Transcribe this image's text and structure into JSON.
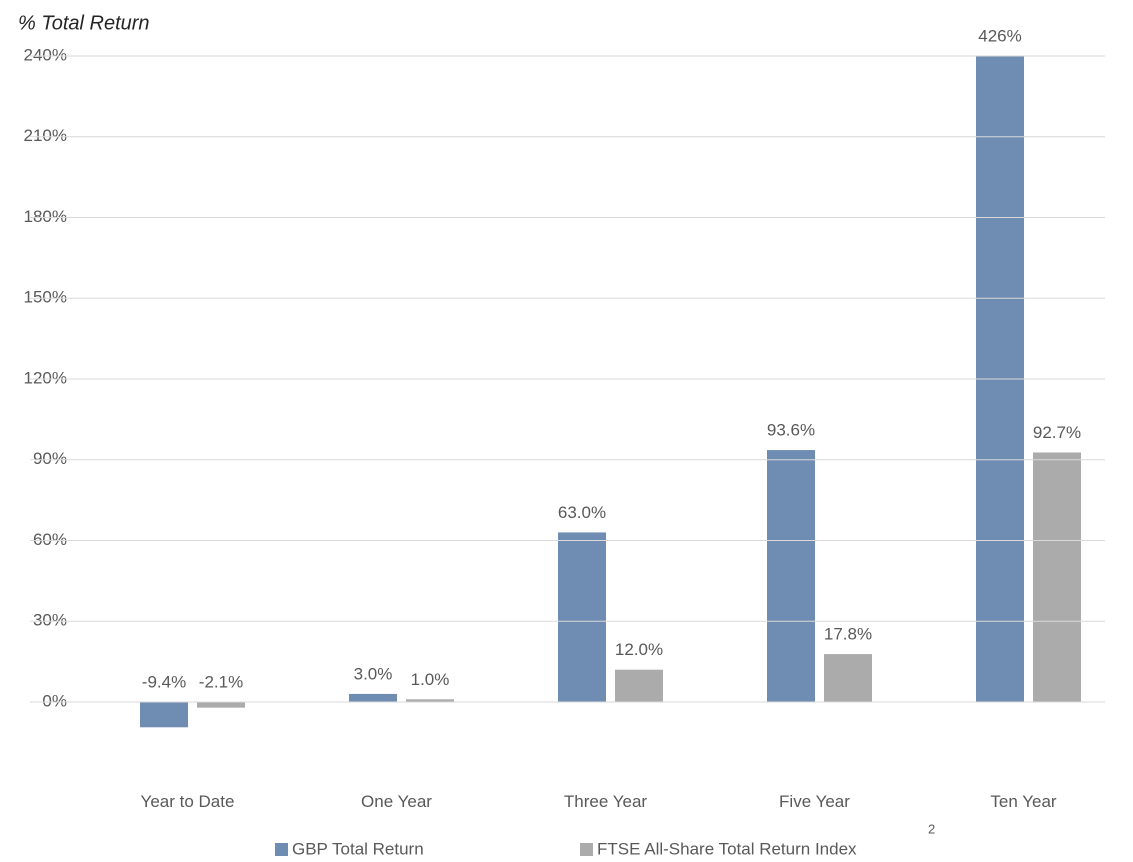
{
  "chart_data": {
    "type": "bar",
    "title": "% Total Return",
    "categories": [
      "Year to Date",
      "One Year",
      "Three Year",
      "Five Year",
      "Ten Year"
    ],
    "series": [
      {
        "name": "GBP Total Return",
        "color": "#6f8db2",
        "values": [
          -9.4,
          3.0,
          63.0,
          93.6,
          426
        ],
        "value_labels": [
          "-9.4%",
          "3.0%",
          "63.0%",
          "93.6%",
          "426%"
        ]
      },
      {
        "name": "FTSE All-Share Total Return Index",
        "color": "#ababab",
        "values": [
          -2.1,
          1.0,
          12.0,
          17.8,
          92.7
        ],
        "value_labels": [
          "-2.1%",
          "1.0%",
          "12.0%",
          "17.8%",
          "92.7%"
        ]
      }
    ],
    "ylim": [
      -30,
      240
    ],
    "yticks": [
      {
        "value": 0,
        "label": "0%"
      },
      {
        "value": 30,
        "label": "30%"
      },
      {
        "value": 60,
        "label": "60%"
      },
      {
        "value": 90,
        "label": "90%"
      },
      {
        "value": 120,
        "label": "120%"
      },
      {
        "value": 150,
        "label": "150%"
      },
      {
        "value": 180,
        "label": "180%"
      },
      {
        "value": 210,
        "label": "210%"
      },
      {
        "value": 240,
        "label": "240%"
      }
    ],
    "grid": true,
    "legend": "bottom",
    "footnote": "2"
  }
}
